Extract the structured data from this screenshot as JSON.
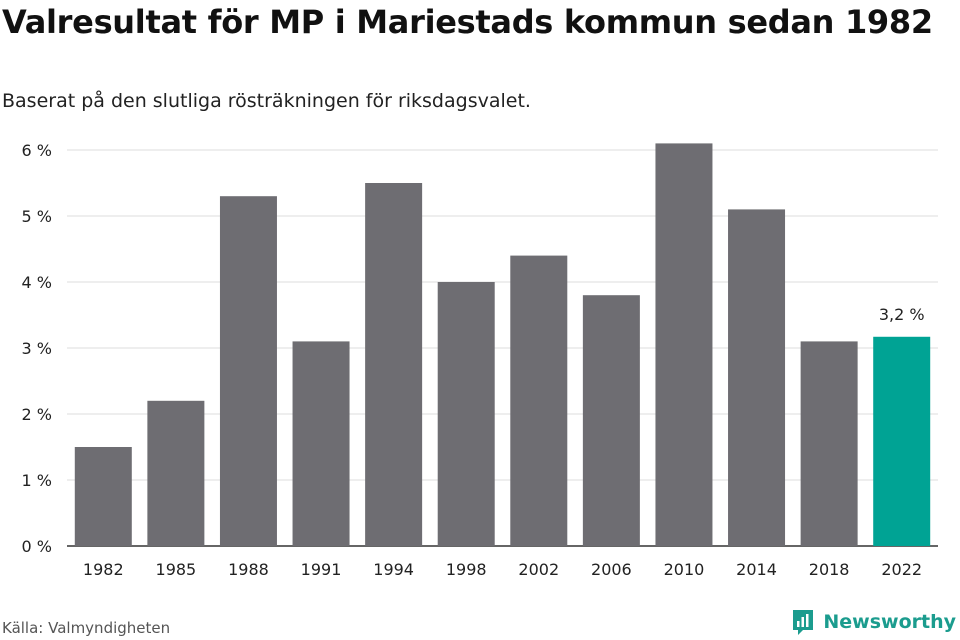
{
  "header": {
    "title": "Valresultat för MP i Mariestads kommun sedan 1982",
    "subtitle": "Baserat på den slutliga rösträkningen för riksdagsvalet."
  },
  "footer": {
    "source": "Källa: Valmyndigheten",
    "brand": "Newsworthy"
  },
  "colors": {
    "bar": "#6e6d72",
    "highlight": "#00a394",
    "grid": "#dcdcdc",
    "axis": "#333333",
    "text": "#222222"
  },
  "chart_data": {
    "type": "bar",
    "categories": [
      "1982",
      "1985",
      "1988",
      "1991",
      "1994",
      "1998",
      "2002",
      "2006",
      "2010",
      "2014",
      "2018",
      "2022"
    ],
    "values": [
      1.5,
      2.2,
      5.3,
      3.1,
      5.5,
      4.0,
      4.4,
      3.8,
      6.1,
      5.1,
      3.1,
      3.17
    ],
    "highlight_index": 11,
    "data_labels": {
      "11": "3,2 %"
    },
    "yticks": [
      "0 %",
      "1 %",
      "2 %",
      "3 %",
      "4 %",
      "5 %",
      "6 %"
    ],
    "ylim": [
      0,
      6
    ],
    "grid": true,
    "legend": "none"
  }
}
